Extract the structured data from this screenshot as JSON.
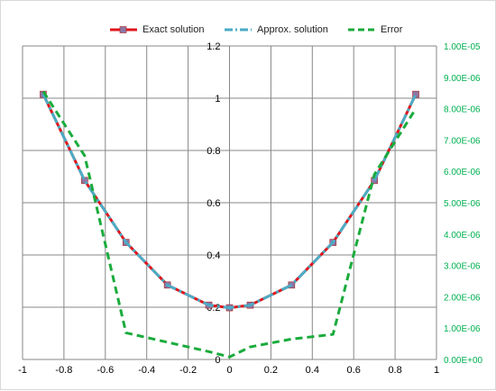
{
  "chart_data": {
    "type": "line",
    "legend_position": "top",
    "grid": true,
    "x": [
      -0.9,
      -0.7,
      -0.5,
      -0.3,
      -0.1,
      0.0,
      0.1,
      0.3,
      0.5,
      0.7,
      0.9
    ],
    "xlim": [
      -1,
      1
    ],
    "x_ticks": [
      "-1",
      "-0.8",
      "-0.6",
      "-0.4",
      "-0.2",
      "0",
      "0.2",
      "0.4",
      "0.6",
      "0.8",
      "1"
    ],
    "ylim": [
      0,
      1.2
    ],
    "y_ticks": [
      "0",
      "0.2",
      "0.4",
      "0.6",
      "0.8",
      "1",
      "1.2"
    ],
    "y2lim": [
      0,
      1e-05
    ],
    "y2_ticks": [
      "0.00E+00",
      "1.00E-06",
      "2.00E-06",
      "3.00E-06",
      "4.00E-06",
      "5.00E-06",
      "6.00E-06",
      "7.00E-06",
      "8.00E-06",
      "9.00E-06",
      "1.00E-05"
    ],
    "series": [
      {
        "name": "Exact solution",
        "axis": "left",
        "color": "#e0151b",
        "marker": "square",
        "values": [
          1.015,
          0.685,
          0.448,
          0.285,
          0.208,
          0.198,
          0.208,
          0.285,
          0.448,
          0.685,
          1.015
        ]
      },
      {
        "name": "Approx. solution",
        "axis": "left",
        "color": "#4bacc6",
        "dash": "dash-dot",
        "values": [
          1.015,
          0.685,
          0.448,
          0.285,
          0.208,
          0.198,
          0.208,
          0.285,
          0.448,
          0.685,
          1.015
        ]
      },
      {
        "name": "Error",
        "axis": "right",
        "color": "#1aab3c",
        "dash": "dash",
        "values": [
          8.55e-06,
          6.5e-06,
          8.5e-07,
          5.5e-07,
          2.5e-07,
          8e-08,
          4e-07,
          6.5e-07,
          8e-07,
          5.9e-06,
          8e-06
        ]
      }
    ]
  }
}
